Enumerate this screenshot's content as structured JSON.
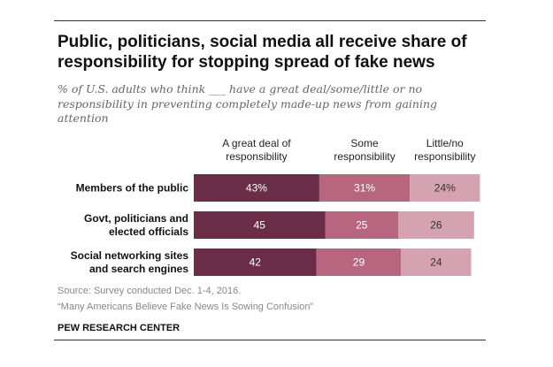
{
  "title": "Public, politicians, social media all receive share of responsibility for stopping spread of fake news",
  "subtitle": "% of U.S. adults who think ___ have a great deal/some/little or no responsibility in preventing completely made-up news from gaining attention",
  "source": "Source: Survey conducted Dec. 1-4, 2016.",
  "report": "“Many Americans Believe Fake News Is Sowing Confusion”",
  "brand": "PEW RESEARCH CENTER",
  "chart_data": {
    "type": "bar",
    "orientation": "horizontal",
    "stacked": true,
    "categories": [
      [
        "Members of the public"
      ],
      [
        "Govt, politicians and",
        "elected officials"
      ],
      [
        "Social networking sites",
        "and search engines"
      ]
    ],
    "series": [
      {
        "name": [
          "A great deal of",
          "responsibility"
        ],
        "values": [
          43,
          45,
          42
        ],
        "labels": [
          "43%",
          "45",
          "42"
        ],
        "color": "#6b2c48",
        "label_color": "#ffffff"
      },
      {
        "name": [
          "Some",
          "responsibility"
        ],
        "values": [
          31,
          25,
          29
        ],
        "labels": [
          "31%",
          "25",
          "29"
        ],
        "color": "#b8657f",
        "label_color": "#ffffff"
      },
      {
        "name": [
          "Little/no",
          "responsibility"
        ],
        "values": [
          24,
          26,
          24
        ],
        "labels": [
          "24%",
          "26",
          "24"
        ],
        "color": "#d5a2b2",
        "label_color": "#333333"
      }
    ],
    "xlim": [
      0,
      100
    ],
    "legend": "column headers above bars",
    "grid": false
  }
}
